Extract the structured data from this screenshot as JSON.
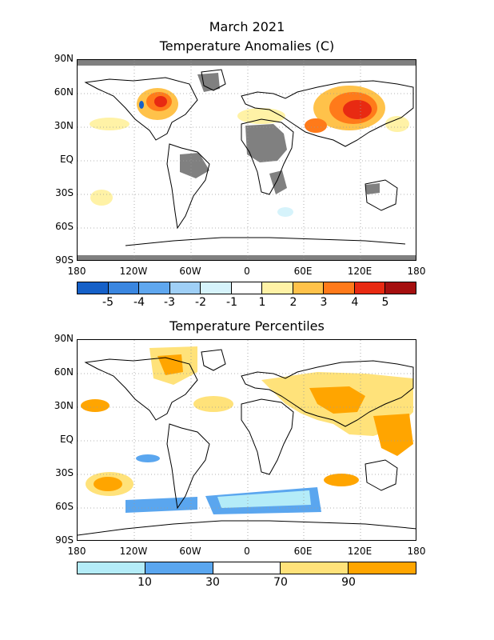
{
  "header": {
    "title_line1": "March 2021",
    "title_line2": "Temperature Anomalies (C)"
  },
  "panel2": {
    "title": "Temperature Percentiles"
  },
  "lat_labels": [
    "90N",
    "60N",
    "30N",
    "EQ",
    "30S",
    "60S",
    "90S"
  ],
  "lon_labels": [
    "180",
    "120W",
    "60W",
    "0",
    "60E",
    "120E",
    "180"
  ],
  "anomaly_legend": {
    "colors": [
      "#1560c8",
      "#3a86e0",
      "#5fa7ef",
      "#9fcff6",
      "#d6f3fb",
      "#ffffff",
      "#fff2a6",
      "#ffc24a",
      "#ff7a1a",
      "#e82a12",
      "#a50f0f"
    ],
    "labels": [
      "-5",
      "-4",
      "-3",
      "-2",
      "-1",
      "1",
      "2",
      "3",
      "4",
      "5"
    ]
  },
  "percentile_legend": {
    "colors": [
      "#b4ecf8",
      "#5aa6ef",
      "#ffffff",
      "#ffe27a",
      "#ffa500"
    ],
    "labels": [
      "10",
      "30",
      "70",
      "90"
    ]
  },
  "colors": {
    "missing": "#808080",
    "land": "#000000",
    "grid": "#9a9a9a"
  }
}
